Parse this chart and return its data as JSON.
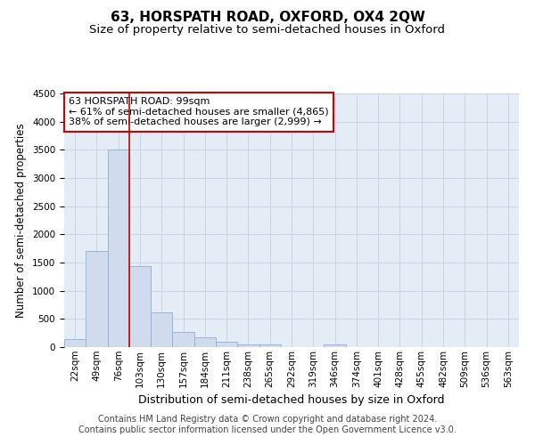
{
  "title": "63, HORSPATH ROAD, OXFORD, OX4 2QW",
  "subtitle": "Size of property relative to semi-detached houses in Oxford",
  "xlabel": "Distribution of semi-detached houses by size in Oxford",
  "ylabel": "Number of semi-detached properties",
  "bar_labels": [
    "22sqm",
    "49sqm",
    "76sqm",
    "103sqm",
    "130sqm",
    "157sqm",
    "184sqm",
    "211sqm",
    "238sqm",
    "265sqm",
    "292sqm",
    "319sqm",
    "346sqm",
    "374sqm",
    "401sqm",
    "428sqm",
    "455sqm",
    "482sqm",
    "509sqm",
    "536sqm",
    "563sqm"
  ],
  "bar_values": [
    150,
    1700,
    3500,
    1430,
    620,
    270,
    170,
    90,
    50,
    50,
    0,
    0,
    50,
    0,
    0,
    0,
    0,
    0,
    0,
    0,
    0
  ],
  "bar_color": "#d0dced",
  "bar_edge_color": "#8fafd4",
  "vline_x_index": 2,
  "vline_color": "#cc0000",
  "annotation_text": "63 HORSPATH ROAD: 99sqm\n← 61% of semi-detached houses are smaller (4,865)\n38% of semi-detached houses are larger (2,999) →",
  "annotation_box_color": "#ffffff",
  "annotation_box_edge_color": "#cc0000",
  "ylim": [
    0,
    4500
  ],
  "yticks": [
    0,
    500,
    1000,
    1500,
    2000,
    2500,
    3000,
    3500,
    4000,
    4500
  ],
  "grid_color": "#c8d4e8",
  "bg_color": "#e4ecf5",
  "footer_line1": "Contains HM Land Registry data © Crown copyright and database right 2024.",
  "footer_line2": "Contains public sector information licensed under the Open Government Licence v3.0.",
  "title_fontsize": 11,
  "subtitle_fontsize": 9.5,
  "xlabel_fontsize": 9,
  "ylabel_fontsize": 8.5,
  "tick_fontsize": 7.5,
  "annotation_fontsize": 8,
  "footer_fontsize": 7
}
